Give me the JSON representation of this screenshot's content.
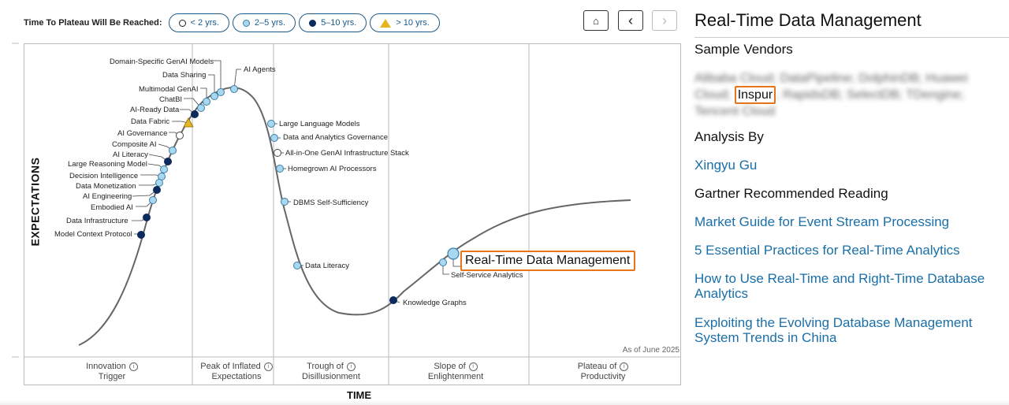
{
  "legend": {
    "label": "Time To Plateau Will Be Reached:",
    "items": [
      "< 2 yrs.",
      "2–5 yrs.",
      "5–10 yrs.",
      "> 10 yrs."
    ]
  },
  "nav": {
    "home": "⌂",
    "prev": "‹",
    "next": "›"
  },
  "chart": {
    "ylabel": "EXPECTATIONS",
    "xlabel": "TIME",
    "as_of": "As of June 2025",
    "phases": [
      {
        "line1": "Innovation",
        "line2": "Trigger"
      },
      {
        "line1": "Peak of Inflated",
        "line2": "Expectations"
      },
      {
        "line1": "Trough of",
        "line2": "Disillusionment"
      },
      {
        "line1": "Slope of",
        "line2": "Enlightenment"
      },
      {
        "line1": "Plateau of",
        "line2": "Productivity"
      }
    ],
    "highlight": "Real-Time Data Management",
    "points": [
      {
        "label": "Domain-Specific GenAI Models",
        "cat": "light"
      },
      {
        "label": "Data Sharing",
        "cat": "light"
      },
      {
        "label": "Multimodal GenAI",
        "cat": "light"
      },
      {
        "label": "ChatBI",
        "cat": "light"
      },
      {
        "label": "AI-Ready Data",
        "cat": "dark"
      },
      {
        "label": "Data Fabric",
        "cat": "tri"
      },
      {
        "label": "AI Governance",
        "cat": "empty"
      },
      {
        "label": "Composite AI",
        "cat": "light"
      },
      {
        "label": "AI Literacy",
        "cat": "dark"
      },
      {
        "label": "Large Reasoning Model",
        "cat": "light"
      },
      {
        "label": "Decision Intelligence",
        "cat": "light"
      },
      {
        "label": "Data Monetization",
        "cat": "light"
      },
      {
        "label": "AI Engineering",
        "cat": "dark"
      },
      {
        "label": "Embodied AI",
        "cat": "light"
      },
      {
        "label": "Data Infrastructure",
        "cat": "dark"
      },
      {
        "label": "Model Context Protocol",
        "cat": "dark"
      },
      {
        "label": "AI Agents",
        "cat": "light"
      },
      {
        "label": "Large Language Models",
        "cat": "light"
      },
      {
        "label": "Data and Analytics Governance",
        "cat": "light"
      },
      {
        "label": "All-in-One GenAI Infrastructure Stack",
        "cat": "empty"
      },
      {
        "label": "Homegrown AI Processors",
        "cat": "light"
      },
      {
        "label": "DBMS Self-Sufficiency",
        "cat": "light"
      },
      {
        "label": "Data Literacy",
        "cat": "light"
      },
      {
        "label": "Knowledge Graphs",
        "cat": "dark"
      },
      {
        "label": "Self-Service Analytics",
        "cat": "light"
      }
    ]
  },
  "panel": {
    "title": "Real-Time Data Management",
    "sample_vendors_heading": "Sample Vendors",
    "vendors_before": "Alibaba Cloud; DataPipeline; DolphinDB; Huawei Cloud;",
    "vendor_highlight": "Inspur",
    "vendors_after": "; RapidsDB; SelectDB; TDengine; Tencent Cloud",
    "analysis_heading": "Analysis By",
    "analyst": "Xingyu Gu",
    "reading_heading": "Gartner Recommended Reading",
    "links": [
      "Market Guide for Event Stream Processing",
      "5 Essential Practices for Real-Time Analytics",
      "How to Use Real-Time and Right-Time Database Analytics",
      "Exploiting the Evolving Database Management System Trends in China"
    ]
  }
}
